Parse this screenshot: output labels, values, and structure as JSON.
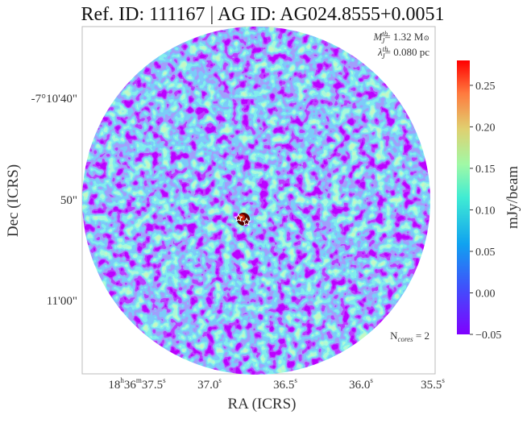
{
  "chart_data": {
    "type": "heatmap",
    "title": "Ref. ID: 111167 | AG ID: AG024.8555+0.0051",
    "xlabel": "RA (ICRS)",
    "ylabel": "Dec (ICRS)",
    "x_ticks": [
      {
        "h": "18",
        "hs": "h",
        "m": "36",
        "ms": "m",
        "s": "37.5",
        "ss": "s"
      },
      {
        "s": "37.0",
        "ss": "s"
      },
      {
        "s": "36.5",
        "ss": "s"
      },
      {
        "s": "36.0",
        "ss": "s"
      },
      {
        "s": "35.5",
        "ss": "s"
      }
    ],
    "y_ticks": [
      "-7°10'40\"",
      "50\"",
      "11'00\""
    ],
    "colorbar": {
      "label": "mJy/beam",
      "range": [
        -0.05,
        0.28
      ],
      "ticks": [
        "0.25",
        "0.20",
        "0.15",
        "0.10",
        "0.05",
        "0.00",
        "−0.05"
      ],
      "tick_values": [
        0.25,
        0.2,
        0.15,
        0.1,
        0.05,
        0.0,
        -0.05
      ],
      "colormap": "rainbow"
    },
    "annotations": {
      "mass_symbol": "M",
      "mass_sup": "th",
      "mass_sub": "J",
      "mass_value": "= 1.32 M",
      "mass_unit_sym": "⊙",
      "lambda_symbol": "λ",
      "lambda_sup": "th",
      "lambda_sub": "J",
      "lambda_value": "= 0.080 pc",
      "ncores_symbol": "N",
      "ncores_sub": "cores",
      "ncores_value": " = 2"
    },
    "n_cores": 2
  }
}
